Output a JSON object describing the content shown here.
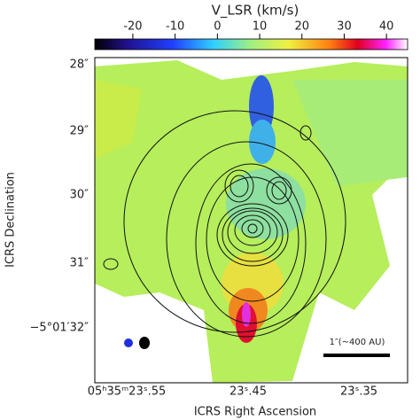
{
  "colorbar": {
    "title": "V_LSR (km/s)",
    "lim": [
      -29,
      45
    ],
    "ticks": [
      -20,
      -10,
      0,
      10,
      20,
      30,
      40
    ]
  },
  "axes": {
    "x_label": "ICRS Right Ascension",
    "y_label": "ICRS Declination",
    "x_ticks": [
      "05ʰ35ᵐ23ˢ.55",
      "23ˢ.45",
      "23ˢ.35"
    ],
    "y_ticks": [
      "28″",
      "29″",
      "30″",
      "31″",
      "−5°01′32″"
    ]
  },
  "scale_bar": "1″(~400 AU)"
}
